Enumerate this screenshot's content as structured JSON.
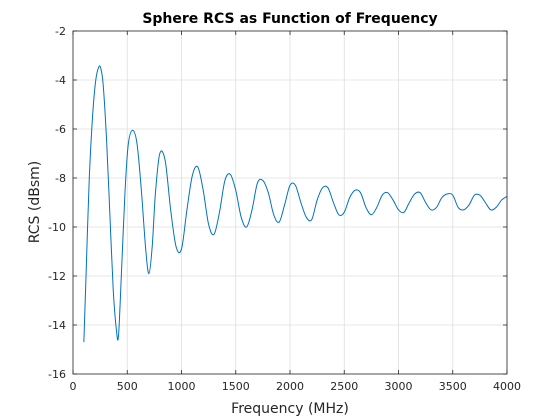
{
  "chart_data": {
    "type": "line",
    "title": "Sphere RCS as Function of Frequency",
    "xlabel": "Frequency (MHz)",
    "ylabel": "RCS (dBsm)",
    "xlim": [
      0,
      4000
    ],
    "ylim": [
      -16,
      -2
    ],
    "xticks": [
      0,
      500,
      1000,
      1500,
      2000,
      2500,
      3000,
      3500,
      4000
    ],
    "yticks": [
      -16,
      -14,
      -12,
      -10,
      -8,
      -6,
      -4,
      -2
    ],
    "grid": true,
    "line_color": "#0072BD",
    "series": [
      {
        "x": [
          100,
          120,
          150,
          180,
          210,
          240,
          260,
          280,
          310,
          340,
          370,
          400,
          420,
          450,
          480,
          510,
          550,
          590,
          630,
          670,
          700,
          730,
          760,
          800,
          850,
          900,
          950,
          1000,
          1050,
          1100,
          1150,
          1200,
          1250,
          1300,
          1350,
          1400,
          1450,
          1500,
          1550,
          1600,
          1650,
          1700,
          1750,
          1800,
          1850,
          1900,
          1950,
          2000,
          2050,
          2100,
          2150,
          2200,
          2250,
          2300,
          2350,
          2400,
          2450,
          2500,
          2550,
          2600,
          2650,
          2700,
          2750,
          2800,
          2850,
          2900,
          2950,
          3000,
          3050,
          3100,
          3150,
          3200,
          3250,
          3300,
          3350,
          3400,
          3450,
          3500,
          3550,
          3600,
          3650,
          3700,
          3750,
          3800,
          3850,
          3900,
          3950,
          4000
        ],
        "y": [
          -14.7,
          -12.0,
          -8.0,
          -5.5,
          -4.0,
          -3.45,
          -3.6,
          -4.3,
          -6.5,
          -9.5,
          -12.5,
          -14.2,
          -14.4,
          -11.5,
          -8.5,
          -6.6,
          -6.05,
          -6.6,
          -8.5,
          -10.9,
          -11.9,
          -10.8,
          -8.6,
          -7.0,
          -7.3,
          -9.3,
          -10.8,
          -10.9,
          -9.3,
          -7.9,
          -7.55,
          -8.5,
          -9.9,
          -10.3,
          -9.4,
          -8.1,
          -7.85,
          -8.5,
          -9.6,
          -10.0,
          -9.3,
          -8.2,
          -8.1,
          -8.6,
          -9.5,
          -9.8,
          -9.1,
          -8.3,
          -8.3,
          -9.0,
          -9.6,
          -9.7,
          -8.9,
          -8.4,
          -8.4,
          -9.0,
          -9.5,
          -9.4,
          -8.8,
          -8.5,
          -8.6,
          -9.2,
          -9.5,
          -9.2,
          -8.7,
          -8.6,
          -8.9,
          -9.3,
          -9.4,
          -9.0,
          -8.65,
          -8.6,
          -9.0,
          -9.3,
          -9.2,
          -8.8,
          -8.65,
          -8.7,
          -9.2,
          -9.3,
          -9.1,
          -8.7,
          -8.7,
          -9.0,
          -9.3,
          -9.2,
          -8.9,
          -8.75
        ]
      }
    ]
  }
}
